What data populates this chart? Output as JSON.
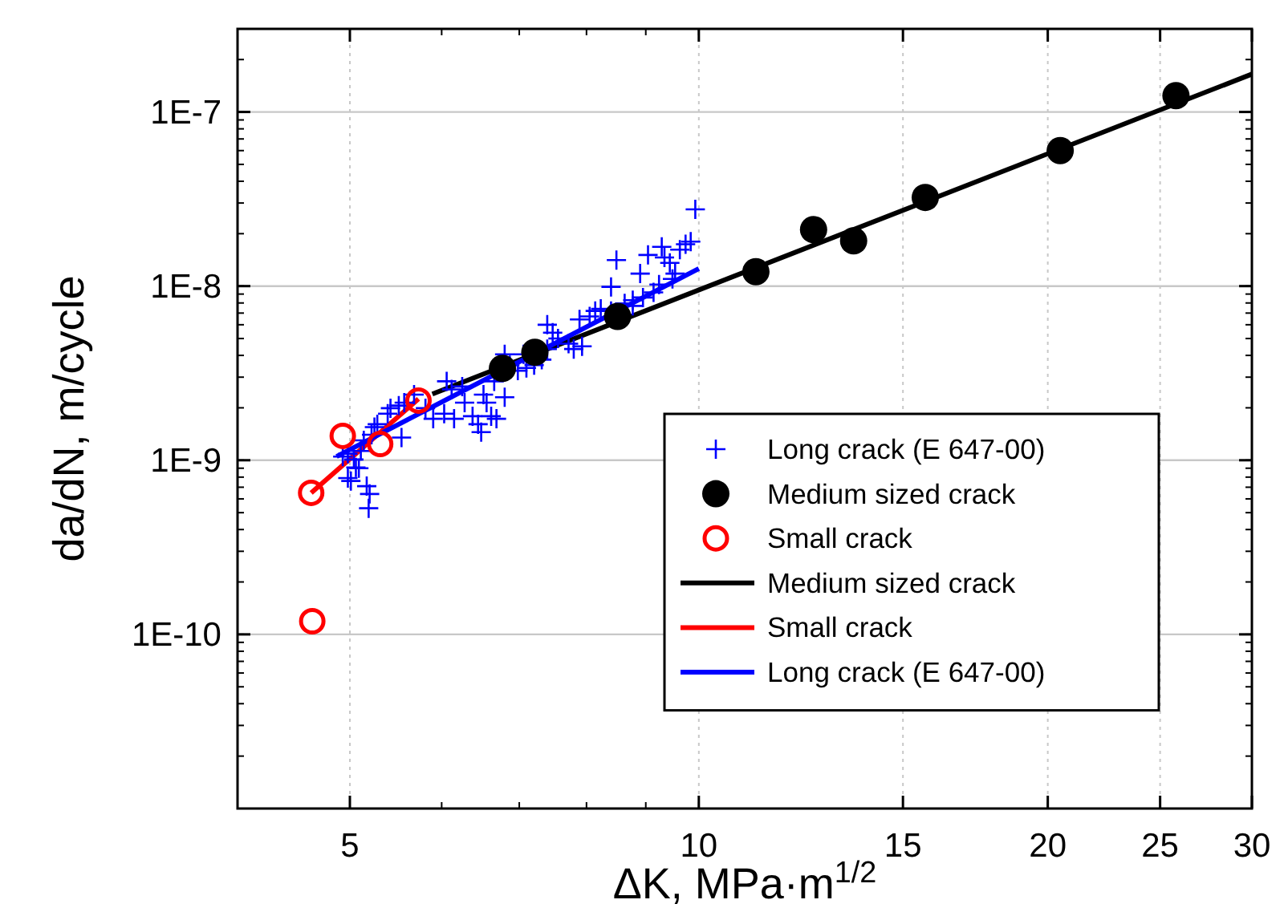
{
  "chart_data": {
    "type": "scatter",
    "xlabel": "ΔK, MPa·m$^{1/2}$",
    "ylabel": "da/dN, m/cycle",
    "log": "xy",
    "grid": true,
    "legend": "bottom right",
    "xlim": [
      4,
      30
    ],
    "xticks": [
      5,
      10,
      15,
      20,
      25,
      30
    ],
    "ylim": [
      1e-11,
      3e-07
    ],
    "yticks": [
      {
        "value": 1e-10,
        "label": "1E-10"
      },
      {
        "value": 1e-09,
        "label": "1E-9"
      },
      {
        "value": 1e-08,
        "label": "1E-8"
      },
      {
        "value": 1e-07,
        "label": "1E-7"
      }
    ],
    "series": [
      {
        "name": "Long crack (E 647-00)",
        "type": "scatter",
        "marker": "cross",
        "color": "#0000ff",
        "x": [
          4.93,
          4.98,
          5.04,
          5.06,
          5.09,
          4.98,
          5.01,
          5.17,
          5.2,
          5.19,
          5.11,
          5.14,
          5.22,
          5.25,
          5.28,
          5.39,
          5.42,
          5.51,
          5.54,
          5.57,
          5.68,
          5.81,
          5.9,
          6.03,
          6.12,
          6.15,
          6.28,
          6.38,
          6.45,
          6.49,
          6.56,
          6.62,
          6.69,
          6.8,
          6.52,
          6.66,
          6.8,
          6.87,
          6.98,
          7.1,
          7.21,
          7.32,
          7.4,
          7.48,
          7.56,
          7.72,
          7.8,
          7.93,
          7.89,
          8.05,
          8.14,
          8.23,
          8.4,
          8.49,
          8.63,
          8.77,
          8.9,
          8.95,
          9.04,
          9.14,
          9.24,
          9.29,
          9.34,
          9.44,
          9.49,
          9.63,
          9.74,
          9.84,
          9.93,
          9.54,
          8.77,
          8.4,
          7.4,
          7.06,
          6.06,
          6.25
        ],
        "values": [
          1.05e-09,
          1.09e-09,
          1.01e-09,
          9.1e-10,
          9e-10,
          7.9e-10,
          7.6e-10,
          7.1e-10,
          6.4e-10,
          5.3e-10,
          1.13e-09,
          1.3e-09,
          1.4e-09,
          1.55e-09,
          1.61e-09,
          1.85e-09,
          1.99e-09,
          2.06e-09,
          1.35e-09,
          2.14e-09,
          2.38e-09,
          1.99e-09,
          1.73e-09,
          1.85e-09,
          2.55e-09,
          1.73e-09,
          2.14e-09,
          1.79e-09,
          1.61e-09,
          1.45e-09,
          2.14e-09,
          1.79e-09,
          1.73e-09,
          2.3e-09,
          2.38e-09,
          2.84e-09,
          4.06e-09,
          3.52e-09,
          3.27e-09,
          3.39e-09,
          3.52e-09,
          3.78e-09,
          6e-09,
          5.4e-09,
          5e-09,
          4.67e-09,
          4.35e-09,
          4.51e-09,
          6.44e-09,
          6.7e-09,
          7.2e-09,
          7.4e-09,
          9.9e-09,
          1.41e-08,
          7.96e-09,
          8.3e-09,
          1.18e-08,
          8.6e-09,
          1.51e-08,
          9.2e-09,
          1.02e-08,
          1.68e-08,
          1.46e-08,
          1.36e-08,
          1.1e-08,
          1.62e-08,
          1.74e-08,
          1.8e-08,
          2.76e-08,
          1.18e-08,
          7.7e-09,
          7.2e-09,
          4.35e-09,
          4.06e-09,
          2.84e-09,
          2.65e-09
        ]
      },
      {
        "name": "Medium sized crack",
        "type": "scatter",
        "marker": "circle",
        "color": "#000000",
        "x": [
          6.77,
          7.22,
          8.51,
          11.2,
          12.56,
          13.6,
          15.68,
          20.5,
          25.8
        ],
        "values": [
          3.37e-09,
          4.17e-09,
          6.7e-09,
          1.21e-08,
          2.11e-08,
          1.82e-08,
          3.23e-08,
          6e-08,
          1.24e-07
        ]
      },
      {
        "name": "Small crack",
        "type": "scatter",
        "marker": "circle",
        "color": "#ff0000",
        "x": [
          4.63,
          4.64,
          4.93,
          5.31,
          5.73
        ],
        "values": [
          6.5e-10,
          1.19e-10,
          1.38e-09,
          1.24e-09,
          2.2e-09
        ]
      },
      {
        "name": "Medium sized crack",
        "type": "line",
        "line_style": "solid",
        "color": "#000000",
        "x": [
          5.89,
          30
        ],
        "values": [
          2.4e-09,
          1.65e-07
        ]
      },
      {
        "name": "Small crack",
        "type": "line",
        "line_style": "solid",
        "color": "#ff0000",
        "x": [
          4.63,
          5.73
        ],
        "values": [
          6.5e-10,
          2.25e-09
        ]
      },
      {
        "name": "Long crack (E 647-00)",
        "type": "line",
        "line_style": "solid",
        "color": "#0000ff",
        "x": [
          4.87,
          10
        ],
        "values": [
          1.05e-09,
          1.26e-08
        ]
      }
    ]
  }
}
